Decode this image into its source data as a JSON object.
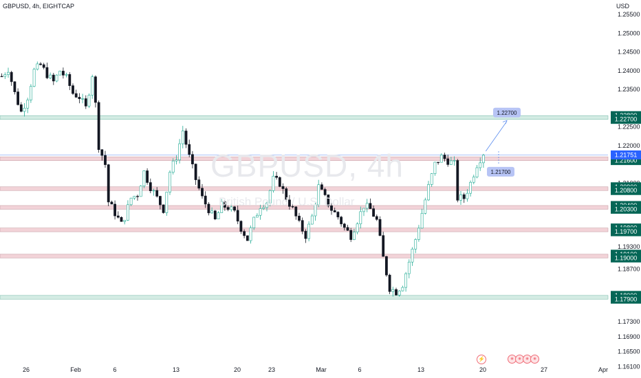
{
  "header": {
    "symbol": "GBPUSD, 4h, EIGHTCAP",
    "currency": "USD"
  },
  "watermark": {
    "symbol": "GBPUSD, 4h",
    "subtitle": "British Pound / U.S. Dollar"
  },
  "colors": {
    "up": "#22ab94",
    "down": "#131722",
    "zone_red": "#f2d3d8",
    "zone_green": "#d4ece4",
    "tag_green": "#056656",
    "tag_blue": "#2962ff",
    "annot_box": "#b7c4f5"
  },
  "chart_data": {
    "type": "candlestick",
    "symbol": "GBPUSD",
    "timeframe": "4h",
    "ylim": [
      1.1585,
      1.2585
    ],
    "price_ticks": [
      "1.25500",
      "1.25000",
      "1.24500",
      "1.24000",
      "1.23500",
      "1.22500",
      "1.22000",
      "1.21000",
      "1.19300",
      "1.18700",
      "1.17300",
      "1.16900",
      "1.16500",
      "1.16100"
    ],
    "date_ticks": [
      "26",
      "Feb",
      "6",
      "13",
      "20",
      "23",
      "Mar",
      "6",
      "13",
      "20",
      "27",
      "Apr"
    ],
    "last_price": "1.21751",
    "zones": [
      {
        "label_high": "1.22800",
        "label_low": "1.22700",
        "high": 1.228,
        "low": 1.227,
        "kind": "green"
      },
      {
        "label_high": "1.21700",
        "label_low": "1.21600",
        "high": 1.217,
        "low": 1.216,
        "kind": "red"
      },
      {
        "label_high": "1.20900",
        "label_low": "1.20800",
        "high": 1.209,
        "low": 1.208,
        "kind": "red"
      },
      {
        "label_high": "1.20400",
        "label_low": "1.20300",
        "high": 1.204,
        "low": 1.203,
        "kind": "red"
      },
      {
        "label_high": "1.19800",
        "label_low": "1.19700",
        "high": 1.198,
        "low": 1.197,
        "kind": "red"
      },
      {
        "label_high": "1.19100",
        "label_low": "1.19000",
        "high": 1.191,
        "low": 1.19,
        "kind": "red"
      },
      {
        "label_high": "1.18000",
        "label_low": "1.17900",
        "high": 1.18,
        "low": 1.179,
        "kind": "green"
      }
    ],
    "annotations": [
      {
        "text": "1.22700",
        "price": 1.227
      },
      {
        "text": "1.21700",
        "price": 1.217
      }
    ],
    "close_path": [
      [
        0,
        1.2385
      ],
      [
        2,
        1.2405
      ],
      [
        4,
        1.234
      ],
      [
        6,
        1.229
      ],
      [
        8,
        1.233
      ],
      [
        10,
        1.24
      ],
      [
        12,
        1.2415
      ],
      [
        14,
        1.239
      ],
      [
        16,
        1.237
      ],
      [
        18,
        1.24
      ],
      [
        20,
        1.238
      ],
      [
        22,
        1.234
      ],
      [
        24,
        1.233
      ],
      [
        26,
        1.23
      ],
      [
        28,
        1.239
      ],
      [
        29,
        1.231
      ],
      [
        30,
        1.22
      ],
      [
        32,
        1.215
      ],
      [
        33,
        1.205
      ],
      [
        35,
        1.202
      ],
      [
        37,
        1.199
      ],
      [
        38,
        1.201
      ],
      [
        40,
        1.206
      ],
      [
        42,
        1.207
      ],
      [
        44,
        1.213
      ],
      [
        46,
        1.209
      ],
      [
        48,
        1.206
      ],
      [
        50,
        1.203
      ],
      [
        52,
        1.213
      ],
      [
        54,
        1.217
      ],
      [
        56,
        1.224
      ],
      [
        58,
        1.217
      ],
      [
        60,
        1.211
      ],
      [
        62,
        1.206
      ],
      [
        64,
        1.203
      ],
      [
        66,
        1.2
      ],
      [
        68,
        1.204
      ],
      [
        70,
        1.2035
      ],
      [
        72,
        1.202
      ],
      [
        74,
        1.198
      ],
      [
        76,
        1.195
      ],
      [
        78,
        1.2
      ],
      [
        80,
        1.204
      ],
      [
        82,
        1.205
      ],
      [
        84,
        1.211
      ],
      [
        86,
        1.21
      ],
      [
        88,
        1.206
      ],
      [
        90,
        1.203
      ],
      [
        92,
        1.199
      ],
      [
        94,
        1.196
      ],
      [
        96,
        1.201
      ],
      [
        98,
        1.209
      ],
      [
        100,
        1.206
      ],
      [
        102,
        1.203
      ],
      [
        104,
        1.201
      ],
      [
        106,
        1.198
      ],
      [
        108,
        1.196
      ],
      [
        110,
        1.2
      ],
      [
        112,
        1.204
      ],
      [
        114,
        1.203
      ],
      [
        116,
        1.2
      ],
      [
        118,
        1.19
      ],
      [
        120,
        1.182
      ],
      [
        122,
        1.181
      ],
      [
        124,
        1.183
      ],
      [
        126,
        1.189
      ],
      [
        128,
        1.195
      ],
      [
        130,
        1.202
      ],
      [
        132,
        1.209
      ],
      [
        134,
        1.215
      ],
      [
        136,
        1.217
      ],
      [
        138,
        1.216
      ],
      [
        140,
        1.215
      ],
      [
        141,
        1.206
      ],
      [
        143,
        1.206
      ],
      [
        145,
        1.21
      ],
      [
        147,
        1.215
      ],
      [
        149,
        1.218
      ]
    ]
  }
}
